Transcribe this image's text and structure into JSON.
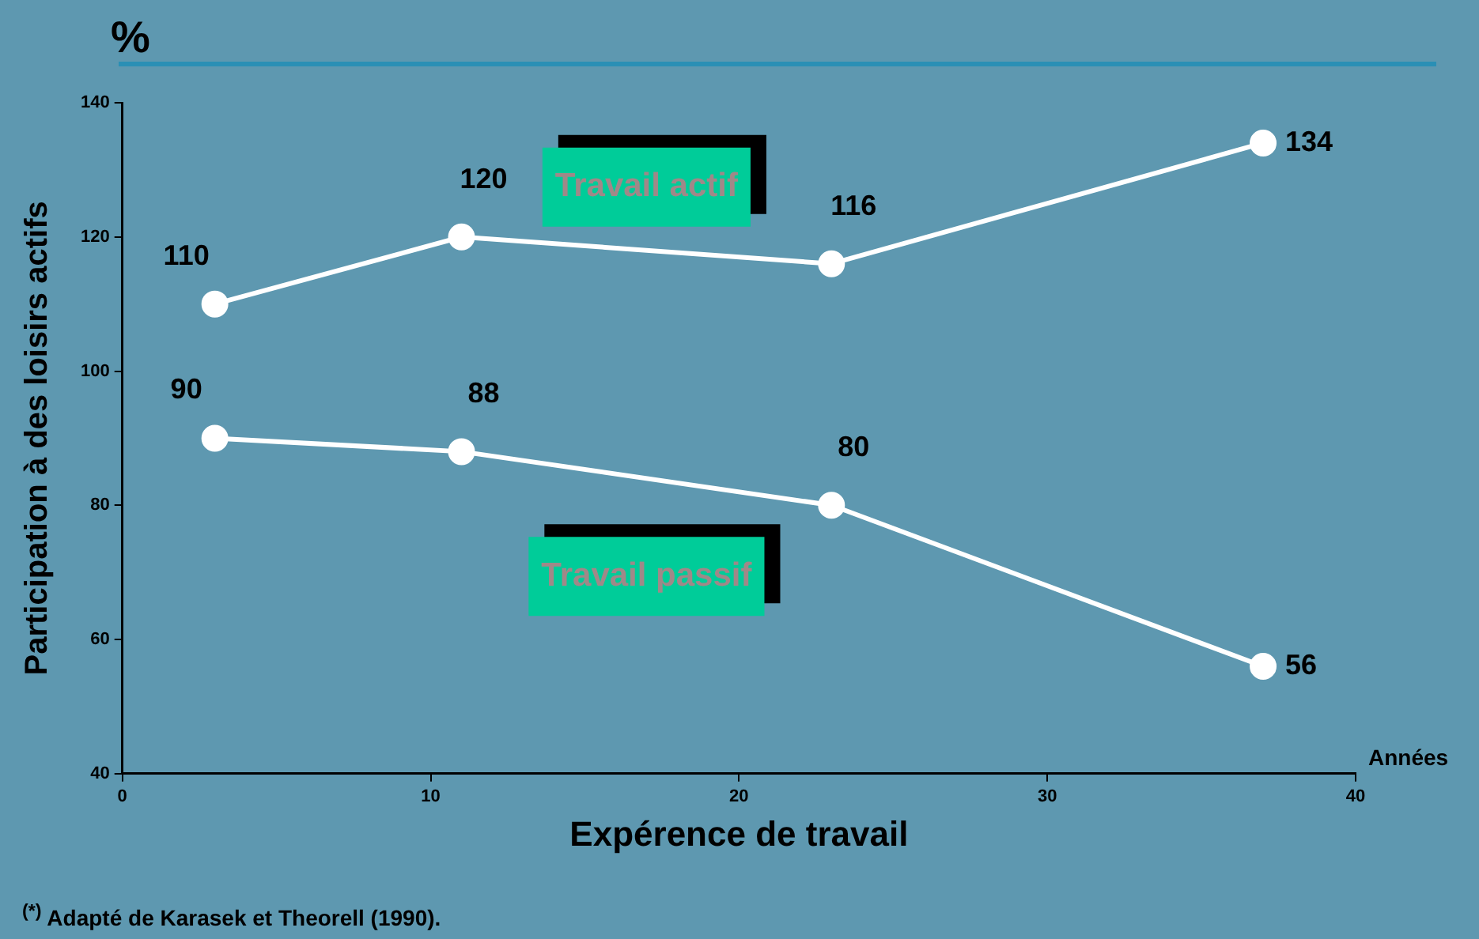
{
  "chart_data": {
    "type": "line",
    "xlabel": "Expérence de travail",
    "ylabel": "Participation à des loisirs actifs",
    "x": [
      3,
      11,
      23,
      37
    ],
    "series": [
      {
        "name": "Travail actif",
        "color": "#ffffff",
        "values": [
          110,
          120,
          116,
          134
        ]
      },
      {
        "name": "Travail passif",
        "color": "#ffffff",
        "values": [
          90,
          88,
          80,
          56
        ]
      }
    ],
    "xlim": [
      0,
      40
    ],
    "xticks": [
      0,
      10,
      20,
      30,
      40
    ],
    "ylim": [
      40,
      140
    ],
    "yticks": [
      40,
      60,
      80,
      100,
      120,
      140
    ],
    "data_labels": true,
    "grid": false,
    "legend": false,
    "marker": "circle",
    "line_style": "solid",
    "annotations": [
      "%",
      "Années",
      "$^{(*)}$ Adapté de Karasek et Theorell (1990)."
    ]
  }
}
